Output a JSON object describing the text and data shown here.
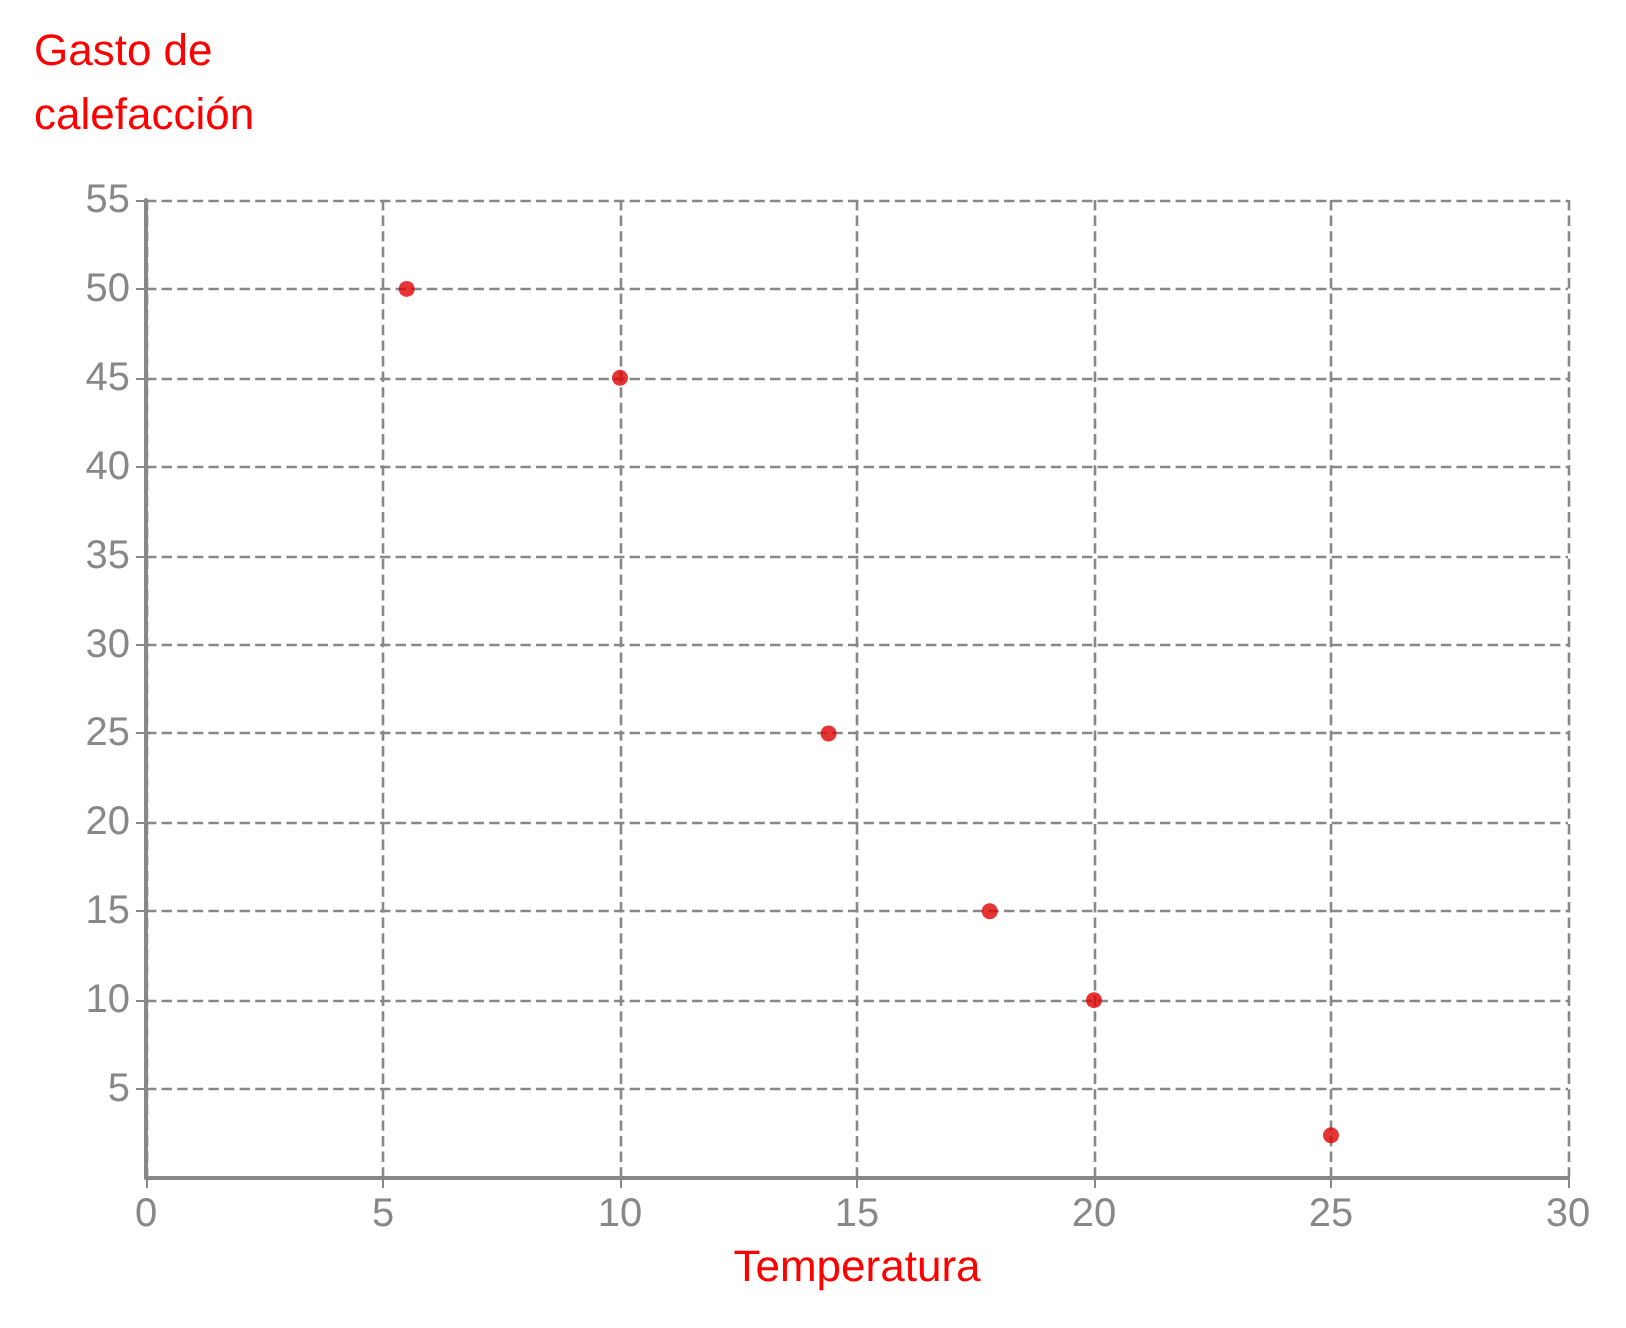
{
  "chart_data": {
    "type": "scatter",
    "xlabel": "Temperatura",
    "ylabel": "Gasto de\ncalefacción",
    "x": [
      5.5,
      10,
      14.4,
      17.8,
      20,
      25
    ],
    "values": [
      50,
      45,
      25,
      15,
      10,
      2.4
    ],
    "color": "#e00000",
    "marker": "circle",
    "grid": true,
    "xlim": [
      0,
      30
    ],
    "xticks": [
      0,
      5,
      10,
      15,
      20,
      25,
      30
    ],
    "ylim": [
      0,
      55
    ],
    "yticks": [
      5,
      10,
      15,
      20,
      25,
      30,
      35,
      40,
      45,
      50,
      55
    ]
  }
}
